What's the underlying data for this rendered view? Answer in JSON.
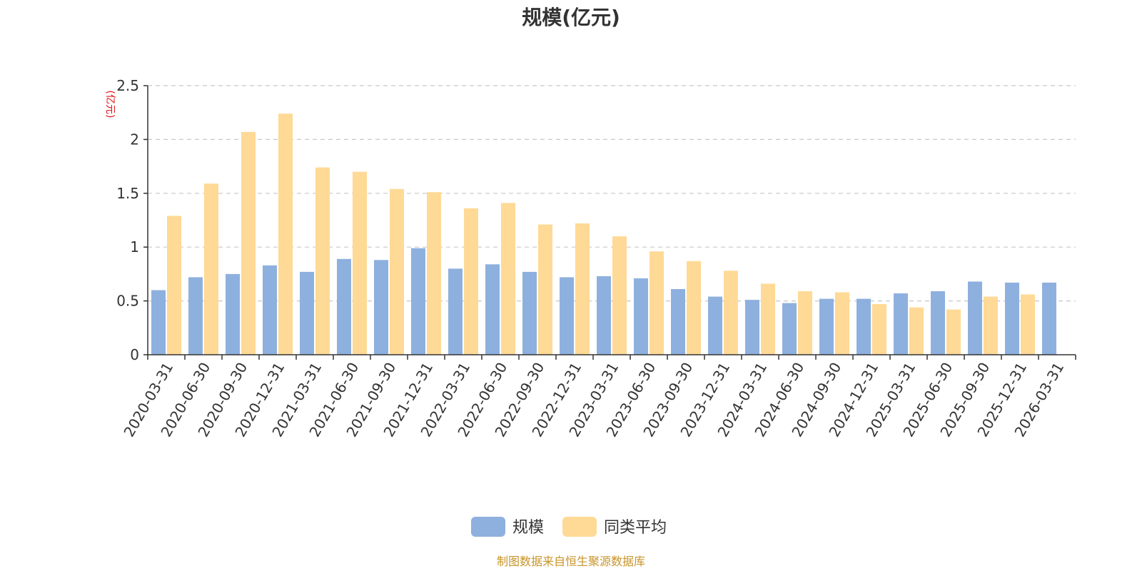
{
  "chart_data": {
    "type": "bar",
    "title": "规模(亿元)",
    "ylabel": "(亿元)",
    "ylim": [
      0,
      2.5
    ],
    "yticks": [
      "0",
      "0.5",
      "1",
      "1.5",
      "2",
      "2.5"
    ],
    "ytick_values": [
      0,
      0.5,
      1,
      1.5,
      2,
      2.5
    ],
    "grid": true,
    "legend_position": "bottom-center",
    "categories": [
      "2020-03-31",
      "2020-06-30",
      "2020-09-30",
      "2020-12-31",
      "2021-03-31",
      "2021-06-30",
      "2021-09-30",
      "2021-12-31",
      "2022-03-31",
      "2022-06-30",
      "2022-09-30",
      "2022-12-31",
      "2023-03-31",
      "2023-06-30",
      "2023-09-30",
      "2023-12-31",
      "2024-03-31",
      "2024-06-30",
      "2024-09-30",
      "2024-12-31",
      "2025-03-31",
      "2025-06-30",
      "2025-09-30",
      "2025-12-31",
      "2026-03-31"
    ],
    "series": [
      {
        "name": "规模",
        "color": "#8eb0de",
        "values": [
          0.6,
          0.72,
          0.75,
          0.83,
          0.77,
          0.89,
          0.88,
          0.99,
          0.8,
          0.84,
          0.77,
          0.72,
          0.73,
          0.71,
          0.61,
          0.54,
          0.51,
          0.48,
          0.52,
          0.52,
          0.57,
          0.59,
          0.68,
          0.67,
          0.67
        ]
      },
      {
        "name": "同类平均",
        "color": "#ffd996",
        "values": [
          1.29,
          1.59,
          2.07,
          2.24,
          1.74,
          1.7,
          1.54,
          1.51,
          1.36,
          1.41,
          1.21,
          1.22,
          1.1,
          0.96,
          0.87,
          0.78,
          0.66,
          0.59,
          0.58,
          0.47,
          0.44,
          0.42,
          0.54,
          0.56,
          null
        ]
      }
    ]
  },
  "footer": {
    "source": "制图数据来自恒生聚源数据库"
  }
}
